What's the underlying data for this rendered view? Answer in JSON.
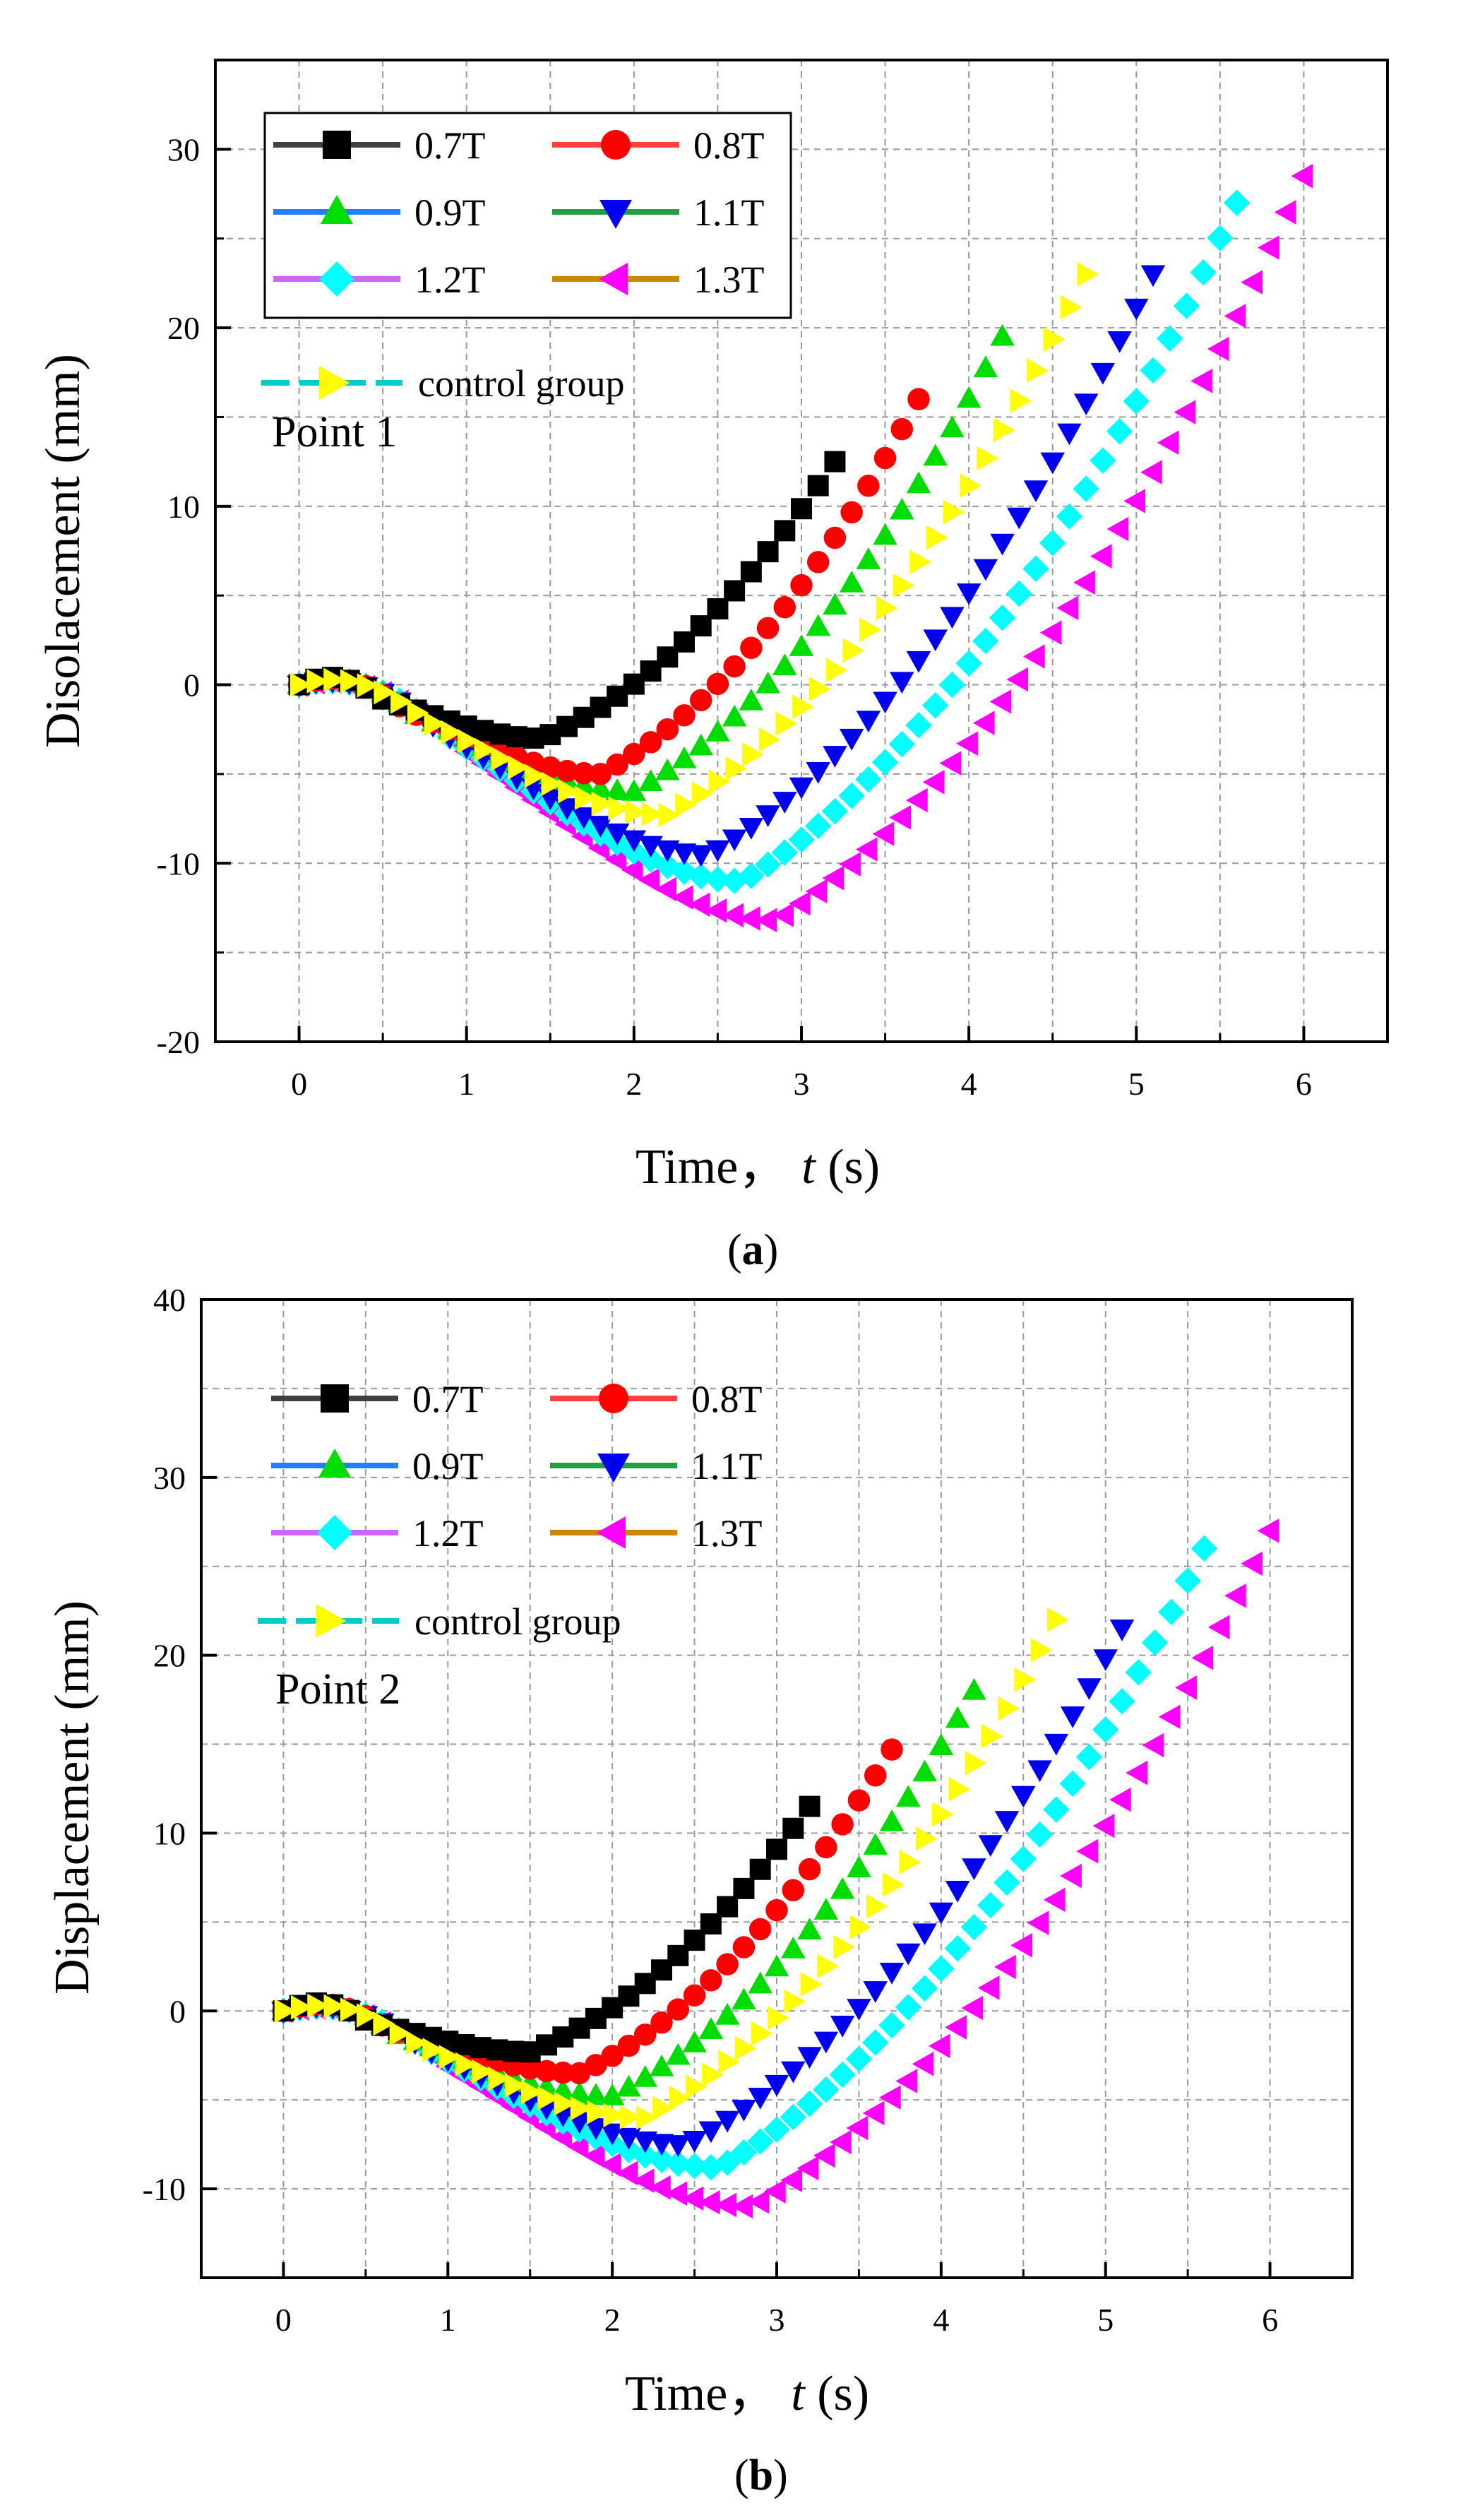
{
  "colors": {
    "black": "#000000",
    "red": "#ff0000",
    "blue": "#0044ff",
    "green": "#00dd00",
    "darkblue": "#0000ee",
    "yellow": "#ffff00",
    "magenta": "#ff00ff",
    "cyan": "#00ffff",
    "line_07T": "#404040",
    "line_08T": "#ff4040",
    "line_09T": "#2080ff",
    "line_11T": "#20a040",
    "line_12T": "#cc66ff",
    "line_13T": "#cc8800",
    "line_control": "#00cccc"
  },
  "chart_data": [
    {
      "type": "scatter",
      "panel_label": "a",
      "point_label": "Point 1",
      "xlabel": "Time，",
      "xlabel_var": "t",
      "xlabel_unit": " (s)",
      "ylabel": "Disolacement (mm)",
      "xlim": [
        -0.5,
        6.5
      ],
      "ylim": [
        -20,
        35
      ],
      "xticks": [
        0,
        1,
        2,
        3,
        4,
        5,
        6
      ],
      "yticks": [
        -20,
        -10,
        0,
        10,
        20,
        30
      ],
      "grid": true,
      "legend_location": "top-left",
      "series": [
        {
          "name": "0.7T",
          "marker": "square",
          "color": "#000000",
          "line_color": "#404040",
          "t_end": 3.2,
          "min_value": -3.0,
          "t_min": 1.45,
          "end_value": 12.5
        },
        {
          "name": "0.8T",
          "marker": "circle",
          "color": "#ff0000",
          "line_color": "#ff4040",
          "t_end": 3.7,
          "min_value": -5.0,
          "t_min": 1.8,
          "end_value": 16.0
        },
        {
          "name": "0.9T",
          "marker": "triangle-up",
          "color": "#00dd00",
          "line_color": "#2080ff",
          "t_end": 4.2,
          "min_value": -6.0,
          "t_min": 2.0,
          "end_value": 19.5
        },
        {
          "name": "1.1T",
          "marker": "triangle-down",
          "color": "#0000ee",
          "line_color": "#20a040",
          "t_end": 5.1,
          "min_value": -9.5,
          "t_min": 2.45,
          "end_value": 23.0
        },
        {
          "name": "1.2T",
          "marker": "diamond",
          "color": "#00ffff",
          "line_color": "#cc66ff",
          "t_end": 5.6,
          "min_value": -11.0,
          "t_min": 2.65,
          "end_value": 27.0
        },
        {
          "name": "1.3T",
          "marker": "triangle-left",
          "color": "#ff00ff",
          "line_color": "#cc8800",
          "t_end": 6.0,
          "min_value": -13.2,
          "t_min": 2.85,
          "end_value": 28.5
        },
        {
          "name": "control group",
          "marker": "triangle-right",
          "color": "#ffff00",
          "line_color": "#00cccc",
          "t_end": 4.7,
          "min_value": -7.3,
          "t_min": 2.2,
          "end_value": 23.0
        }
      ]
    },
    {
      "type": "scatter",
      "panel_label": "b",
      "point_label": "Point 2",
      "xlabel": "Time，",
      "xlabel_var": "t",
      "xlabel_unit": " (s)",
      "ylabel": "Displacement (mm)",
      "xlim": [
        -0.5,
        6.5
      ],
      "ylim": [
        -15,
        40
      ],
      "xticks": [
        0,
        1,
        2,
        3,
        4,
        5,
        6
      ],
      "yticks": [
        -10,
        0,
        10,
        20,
        30,
        40
      ],
      "grid": true,
      "legend_location": "top-left",
      "series": [
        {
          "name": "0.7T",
          "marker": "square",
          "color": "#000000",
          "line_color": "#404040",
          "t_end": 3.2,
          "min_value": -2.3,
          "t_min": 1.5,
          "end_value": 11.5
        },
        {
          "name": "0.8T",
          "marker": "circle",
          "color": "#ff0000",
          "line_color": "#ff4040",
          "t_end": 3.7,
          "min_value": -3.5,
          "t_min": 1.8,
          "end_value": 14.7
        },
        {
          "name": "0.9T",
          "marker": "triangle-up",
          "color": "#00dd00",
          "line_color": "#2080ff",
          "t_end": 4.2,
          "min_value": -4.8,
          "t_min": 2.0,
          "end_value": 18.0
        },
        {
          "name": "1.1T",
          "marker": "triangle-down",
          "color": "#0000ee",
          "line_color": "#20a040",
          "t_end": 5.1,
          "min_value": -7.5,
          "t_min": 2.45,
          "end_value": 21.5
        },
        {
          "name": "1.2T",
          "marker": "diamond",
          "color": "#00ffff",
          "line_color": "#cc66ff",
          "t_end": 5.6,
          "min_value": -8.8,
          "t_min": 2.65,
          "end_value": 26.0
        },
        {
          "name": "1.3T",
          "marker": "triangle-left",
          "color": "#ff00ff",
          "line_color": "#cc8800",
          "t_end": 6.0,
          "min_value": -11.0,
          "t_min": 2.85,
          "end_value": 27.0
        },
        {
          "name": "control group",
          "marker": "triangle-right",
          "color": "#ffff00",
          "line_color": "#00cccc",
          "t_end": 4.7,
          "min_value": -6.0,
          "t_min": 2.2,
          "end_value": 22.0
        }
      ]
    }
  ]
}
